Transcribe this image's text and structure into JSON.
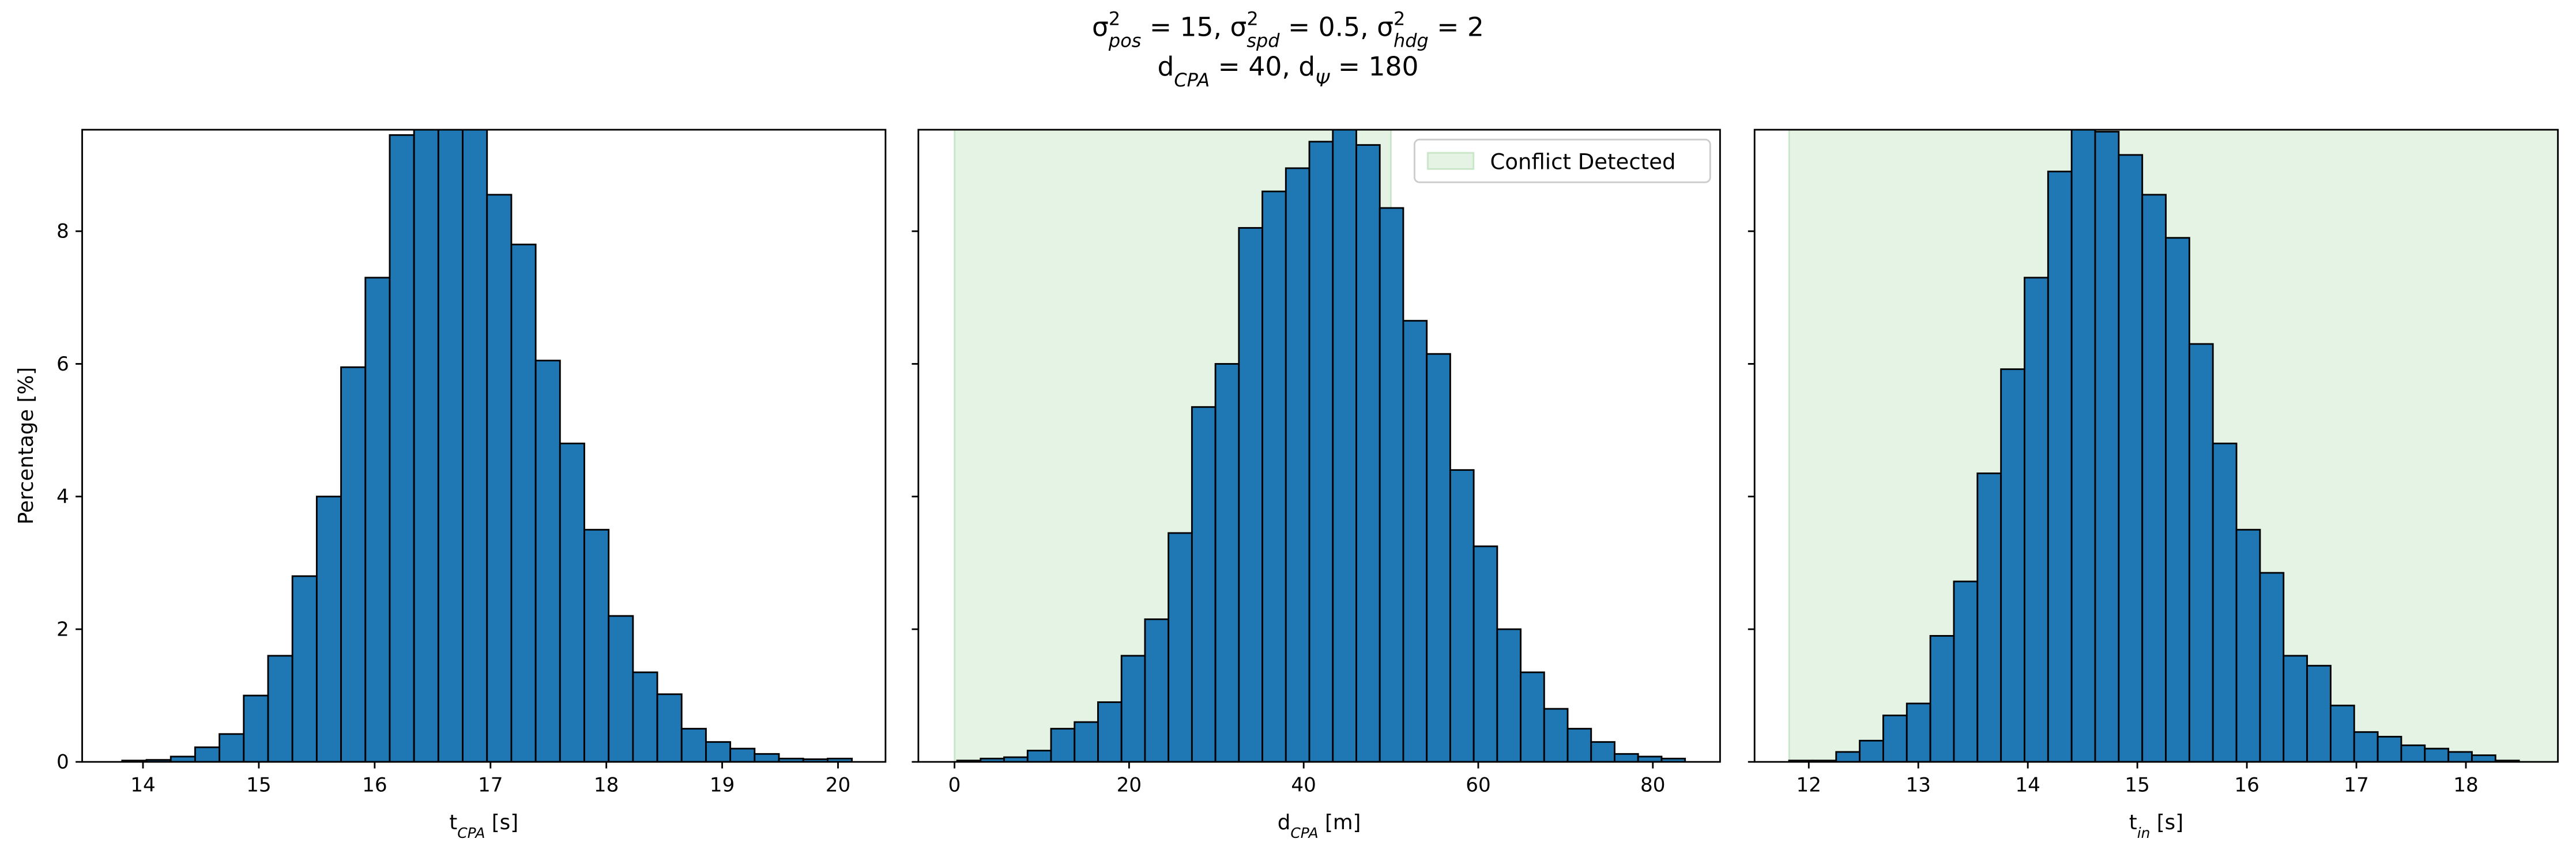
{
  "title": [
    [
      {
        "text": "σ",
        "pos": "base"
      },
      {
        "text": "2",
        "pos": "sup"
      },
      {
        "text": "pos",
        "pos": "sub"
      },
      {
        "text": " = 15, σ",
        "pos": "base"
      },
      {
        "text": "2",
        "pos": "sup"
      },
      {
        "text": "spd",
        "pos": "sub"
      },
      {
        "text": " = 0.5, σ",
        "pos": "base"
      },
      {
        "text": "2",
        "pos": "sup"
      },
      {
        "text": "hdg",
        "pos": "sub"
      },
      {
        "text": " = 2",
        "pos": "base"
      }
    ],
    [
      {
        "text": "d",
        "pos": "base"
      },
      {
        "text": "CPA",
        "pos": "sub"
      },
      {
        "text": " = 40, d",
        "pos": "base"
      },
      {
        "text": "Ψ",
        "pos": "sub"
      },
      {
        "text": " = 180",
        "pos": "base"
      }
    ]
  ],
  "chart_data": [
    {
      "type": "histogram",
      "color": "#1f77b4",
      "edgecolor": "#000000",
      "xlabel": [
        {
          "text": "t",
          "pos": "base"
        },
        {
          "text": "CPA",
          "pos": "sub"
        },
        {
          "text": " [s]",
          "pos": "base"
        }
      ],
      "ylabel": "Percentage [%]",
      "xlim": [
        13.475,
        20.41
      ],
      "ylim": [
        0,
        9.53
      ],
      "xticks": [
        14,
        15,
        16,
        17,
        18,
        19,
        20
      ],
      "yticks": [
        0,
        2,
        4,
        6,
        8
      ],
      "bins": [
        13.82,
        14.03,
        14.24,
        14.45,
        14.66,
        14.87,
        15.08,
        15.29,
        15.5,
        15.71,
        15.92,
        16.13,
        16.34,
        16.55,
        16.76,
        16.97,
        17.18,
        17.39,
        17.6,
        17.81,
        18.02,
        18.23,
        18.44,
        18.65,
        18.86,
        19.07,
        19.28,
        19.49,
        19.7,
        19.91,
        20.12
      ],
      "values": [
        0.02,
        0.03,
        0.08,
        0.22,
        0.42,
        1.0,
        1.6,
        2.8,
        4.0,
        5.95,
        7.3,
        9.45,
        9.9,
        10.2,
        9.7,
        8.55,
        7.8,
        6.05,
        4.8,
        3.5,
        2.2,
        1.35,
        1.02,
        0.5,
        0.3,
        0.2,
        0.12,
        0.05,
        0.04,
        0.05
      ]
    },
    {
      "type": "histogram",
      "color": "#1f77b4",
      "edgecolor": "#000000",
      "xlabel": [
        {
          "text": "d",
          "pos": "base"
        },
        {
          "text": "CPA",
          "pos": "sub"
        },
        {
          "text": " [m]",
          "pos": "base"
        }
      ],
      "xlim": [
        -4.14,
        87.7
      ],
      "ylim": [
        0,
        9.53
      ],
      "xticks": [
        0,
        20,
        40,
        60,
        80
      ],
      "yticks": [
        0,
        2,
        4,
        6,
        8
      ],
      "span": [
        0,
        50
      ],
      "span_color": "#2ca02c",
      "span_name": "Conflict Detected",
      "legend": "upper right",
      "bins": [
        0.3,
        2.99,
        5.68,
        8.37,
        11.06,
        13.75,
        16.44,
        19.13,
        21.82,
        24.51,
        27.2,
        29.89,
        32.58,
        35.27,
        37.96,
        40.65,
        43.34,
        46.03,
        48.72,
        51.41,
        54.1,
        56.79,
        59.48,
        62.17,
        64.86,
        67.55,
        70.24,
        72.93,
        75.62,
        78.31,
        81.0,
        83.69
      ],
      "values": [
        0.02,
        0.05,
        0.07,
        0.17,
        0.5,
        0.6,
        0.9,
        1.6,
        2.15,
        3.45,
        5.35,
        6.0,
        8.05,
        8.6,
        8.95,
        9.35,
        9.7,
        9.3,
        8.35,
        6.65,
        6.15,
        4.4,
        3.25,
        2.0,
        1.35,
        0.8,
        0.5,
        0.3,
        0.12,
        0.08,
        0.05
      ]
    },
    {
      "type": "histogram",
      "color": "#1f77b4",
      "edgecolor": "#000000",
      "xlabel": [
        {
          "text": "t",
          "pos": "base"
        },
        {
          "text": "in",
          "pos": "sub"
        },
        {
          "text": " [s]",
          "pos": "base"
        }
      ],
      "xlim": [
        11.505,
        18.84
      ],
      "ylim": [
        0,
        9.53
      ],
      "xticks": [
        12,
        13,
        14,
        15,
        16,
        17,
        18
      ],
      "yticks": [
        0,
        2,
        4,
        6,
        8
      ],
      "span": [
        11.82,
        18.84
      ],
      "span_color": "#2ca02c",
      "bins": [
        11.82,
        12.035,
        12.25,
        12.465,
        12.68,
        12.895,
        13.11,
        13.325,
        13.54,
        13.755,
        13.97,
        14.185,
        14.4,
        14.615,
        14.83,
        15.045,
        15.26,
        15.475,
        15.69,
        15.905,
        16.12,
        16.335,
        16.55,
        16.765,
        16.98,
        17.195,
        17.41,
        17.625,
        17.84,
        18.055,
        18.27,
        18.485
      ],
      "values": [
        0.02,
        0.02,
        0.15,
        0.32,
        0.7,
        0.88,
        1.9,
        2.72,
        4.35,
        5.92,
        7.3,
        8.9,
        9.9,
        9.5,
        9.15,
        8.55,
        7.9,
        6.3,
        4.8,
        3.5,
        2.85,
        1.6,
        1.45,
        0.85,
        0.45,
        0.38,
        0.25,
        0.2,
        0.15,
        0.1,
        0.02
      ]
    }
  ]
}
